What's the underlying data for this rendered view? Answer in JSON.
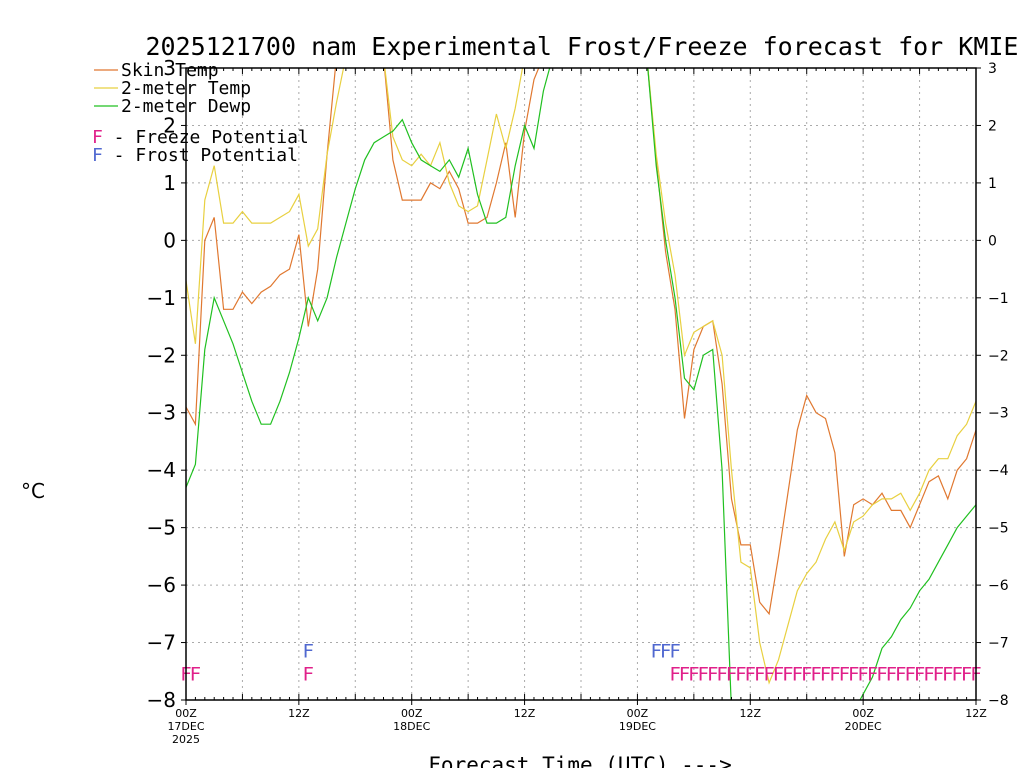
{
  "chart_data": {
    "type": "line",
    "title": "2025121700 nam Experimental Frost/Freeze forecast for KMIE",
    "xlabel": "Forecast Time (UTC) --->",
    "ylabel": "°C",
    "ylim": [
      -8,
      3
    ],
    "yticks": [
      3,
      2,
      1,
      0,
      -1,
      -2,
      -3,
      -4,
      -5,
      -6,
      -7,
      -8
    ],
    "xlim": [
      0,
      84
    ],
    "grid": true,
    "legend_position": "top-left",
    "x_ticks": [
      {
        "hour": 0,
        "label": "00Z",
        "sub": "17DEC",
        "sub2": "2025"
      },
      {
        "hour": 12,
        "label": "12Z",
        "sub": "",
        "sub2": ""
      },
      {
        "hour": 24,
        "label": "00Z",
        "sub": "18DEC",
        "sub2": ""
      },
      {
        "hour": 36,
        "label": "12Z",
        "sub": "",
        "sub2": ""
      },
      {
        "hour": 48,
        "label": "00Z",
        "sub": "19DEC",
        "sub2": ""
      },
      {
        "hour": 60,
        "label": "12Z",
        "sub": "",
        "sub2": ""
      },
      {
        "hour": 72,
        "label": "00Z",
        "sub": "20DEC",
        "sub2": ""
      },
      {
        "hour": 84,
        "label": "12Z",
        "sub": "",
        "sub2": ""
      }
    ],
    "series": [
      {
        "name": "Skin Temp",
        "color": "#e07830",
        "points": [
          [
            0,
            -2.9
          ],
          [
            1,
            -3.2
          ],
          [
            2,
            0.0
          ],
          [
            3,
            0.4
          ],
          [
            4,
            -1.2
          ],
          [
            5,
            -1.2
          ],
          [
            6,
            -0.9
          ],
          [
            7,
            -1.1
          ],
          [
            8,
            -0.9
          ],
          [
            9,
            -0.8
          ],
          [
            10,
            -0.6
          ],
          [
            11,
            -0.5
          ],
          [
            12,
            0.1
          ],
          [
            13,
            -1.5
          ],
          [
            14,
            -0.5
          ],
          [
            15,
            1.5
          ],
          [
            16,
            3.2
          ],
          [
            21,
            3.2
          ],
          [
            22,
            1.4
          ],
          [
            23,
            0.7
          ],
          [
            24,
            0.7
          ],
          [
            25,
            0.7
          ],
          [
            26,
            1.0
          ],
          [
            27,
            0.9
          ],
          [
            28,
            1.2
          ],
          [
            29,
            0.9
          ],
          [
            30,
            0.3
          ],
          [
            31,
            0.3
          ],
          [
            32,
            0.4
          ],
          [
            33,
            1.0
          ],
          [
            34,
            1.7
          ],
          [
            35,
            0.4
          ],
          [
            36,
            1.9
          ],
          [
            37,
            2.8
          ],
          [
            38,
            3.2
          ],
          [
            49,
            3.2
          ],
          [
            50,
            1.4
          ],
          [
            51,
            -0.2
          ],
          [
            52,
            -1.2
          ],
          [
            53,
            -3.1
          ],
          [
            54,
            -1.9
          ],
          [
            55,
            -1.5
          ],
          [
            56,
            -1.4
          ],
          [
            57,
            -2.5
          ],
          [
            58,
            -4.5
          ],
          [
            59,
            -5.3
          ],
          [
            60,
            -5.3
          ],
          [
            61,
            -6.3
          ],
          [
            62,
            -6.5
          ],
          [
            63,
            -5.5
          ],
          [
            64,
            -4.4
          ],
          [
            65,
            -3.3
          ],
          [
            66,
            -2.7
          ],
          [
            67,
            -3.0
          ],
          [
            68,
            -3.1
          ],
          [
            69,
            -3.7
          ],
          [
            70,
            -5.5
          ],
          [
            71,
            -4.6
          ],
          [
            72,
            -4.5
          ],
          [
            73,
            -4.6
          ],
          [
            74,
            -4.4
          ],
          [
            75,
            -4.7
          ],
          [
            76,
            -4.7
          ],
          [
            77,
            -5.0
          ],
          [
            78,
            -4.6
          ],
          [
            79,
            -4.2
          ],
          [
            80,
            -4.1
          ],
          [
            81,
            -4.5
          ],
          [
            82,
            -4.0
          ],
          [
            83,
            -3.8
          ],
          [
            84,
            -3.3
          ]
        ]
      },
      {
        "name": "2-meter Temp",
        "color": "#e8d040",
        "points": [
          [
            0,
            -0.7
          ],
          [
            1,
            -1.8
          ],
          [
            2,
            0.7
          ],
          [
            3,
            1.3
          ],
          [
            4,
            0.3
          ],
          [
            5,
            0.3
          ],
          [
            6,
            0.5
          ],
          [
            7,
            0.3
          ],
          [
            8,
            0.3
          ],
          [
            9,
            0.3
          ],
          [
            10,
            0.4
          ],
          [
            11,
            0.5
          ],
          [
            12,
            0.8
          ],
          [
            13,
            -0.1
          ],
          [
            14,
            0.2
          ],
          [
            15,
            1.5
          ],
          [
            16,
            2.4
          ],
          [
            17,
            3.2
          ],
          [
            21,
            3.2
          ],
          [
            22,
            1.8
          ],
          [
            23,
            1.4
          ],
          [
            24,
            1.3
          ],
          [
            25,
            1.5
          ],
          [
            26,
            1.3
          ],
          [
            27,
            1.7
          ],
          [
            28,
            1.0
          ],
          [
            29,
            0.6
          ],
          [
            30,
            0.5
          ],
          [
            31,
            0.6
          ],
          [
            32,
            1.4
          ],
          [
            33,
            2.2
          ],
          [
            34,
            1.6
          ],
          [
            35,
            2.3
          ],
          [
            36,
            3.2
          ],
          [
            49,
            3.2
          ],
          [
            50,
            1.5
          ],
          [
            51,
            0.3
          ],
          [
            52,
            -0.6
          ],
          [
            53,
            -2.0
          ],
          [
            54,
            -1.6
          ],
          [
            55,
            -1.5
          ],
          [
            56,
            -1.4
          ],
          [
            57,
            -2.0
          ],
          [
            58,
            -4.0
          ],
          [
            59,
            -5.6
          ],
          [
            60,
            -5.7
          ],
          [
            61,
            -7.0
          ],
          [
            62,
            -7.7
          ],
          [
            63,
            -7.3
          ],
          [
            64,
            -6.7
          ],
          [
            65,
            -6.1
          ],
          [
            66,
            -5.8
          ],
          [
            67,
            -5.6
          ],
          [
            68,
            -5.2
          ],
          [
            69,
            -4.9
          ],
          [
            70,
            -5.4
          ],
          [
            71,
            -4.9
          ],
          [
            72,
            -4.8
          ],
          [
            73,
            -4.6
          ],
          [
            74,
            -4.5
          ],
          [
            75,
            -4.5
          ],
          [
            76,
            -4.4
          ],
          [
            77,
            -4.7
          ],
          [
            78,
            -4.4
          ],
          [
            79,
            -4.0
          ],
          [
            80,
            -3.8
          ],
          [
            81,
            -3.8
          ],
          [
            82,
            -3.4
          ],
          [
            83,
            -3.2
          ],
          [
            84,
            -2.8
          ]
        ]
      },
      {
        "name": "2-meter Dewp",
        "color": "#20c020",
        "points": [
          [
            0,
            -4.3
          ],
          [
            1,
            -3.9
          ],
          [
            2,
            -1.9
          ],
          [
            3,
            -1.0
          ],
          [
            4,
            -1.4
          ],
          [
            5,
            -1.8
          ],
          [
            6,
            -2.3
          ],
          [
            7,
            -2.8
          ],
          [
            8,
            -3.2
          ],
          [
            9,
            -3.2
          ],
          [
            10,
            -2.8
          ],
          [
            11,
            -2.3
          ],
          [
            12,
            -1.7
          ],
          [
            13,
            -1.0
          ],
          [
            14,
            -1.4
          ],
          [
            15,
            -1.0
          ],
          [
            16,
            -0.3
          ],
          [
            17,
            0.3
          ],
          [
            18,
            0.9
          ],
          [
            19,
            1.4
          ],
          [
            20,
            1.7
          ],
          [
            21,
            1.8
          ],
          [
            22,
            1.9
          ],
          [
            23,
            2.1
          ],
          [
            24,
            1.7
          ],
          [
            25,
            1.4
          ],
          [
            26,
            1.3
          ],
          [
            27,
            1.2
          ],
          [
            28,
            1.4
          ],
          [
            29,
            1.1
          ],
          [
            30,
            1.6
          ],
          [
            31,
            0.8
          ],
          [
            32,
            0.3
          ],
          [
            33,
            0.3
          ],
          [
            34,
            0.4
          ],
          [
            35,
            1.3
          ],
          [
            36,
            2.0
          ],
          [
            37,
            1.6
          ],
          [
            38,
            2.6
          ],
          [
            39,
            3.2
          ],
          [
            49,
            3.2
          ],
          [
            50,
            1.3
          ],
          [
            51,
            0.0
          ],
          [
            52,
            -1.0
          ],
          [
            53,
            -2.4
          ],
          [
            54,
            -2.6
          ],
          [
            55,
            -2.0
          ],
          [
            56,
            -1.9
          ],
          [
            57,
            -4.0
          ],
          [
            58,
            -8.2
          ],
          [
            71,
            -8.2
          ],
          [
            72,
            -7.9
          ],
          [
            73,
            -7.6
          ],
          [
            74,
            -7.1
          ],
          [
            75,
            -6.9
          ],
          [
            76,
            -6.6
          ],
          [
            77,
            -6.4
          ],
          [
            78,
            -6.1
          ],
          [
            79,
            -5.9
          ],
          [
            80,
            -5.6
          ],
          [
            81,
            -5.3
          ],
          [
            82,
            -5.0
          ],
          [
            83,
            -4.8
          ],
          [
            84,
            -4.6
          ]
        ]
      }
    ],
    "legend_items": [
      {
        "label": "Skin Temp",
        "color": "#e07830"
      },
      {
        "label": "2-meter Temp",
        "color": "#e8d040"
      },
      {
        "label": "2-meter Dewp",
        "color": "#20c020"
      }
    ],
    "potential_legend": [
      {
        "prefix": "F",
        "text": " - Freeze Potential",
        "color": "#e0208a"
      },
      {
        "prefix": "F",
        "text": " - Frost Potential",
        "color": "#5068d0"
      }
    ],
    "freeze_marker": {
      "symbol": "F",
      "color": "#e0208a",
      "y": -7.5,
      "hours": [
        0,
        1,
        13,
        52,
        53,
        54,
        55,
        56,
        57,
        58,
        59,
        60,
        61,
        62,
        63,
        64,
        65,
        66,
        67,
        68,
        69,
        70,
        71,
        72,
        73,
        74,
        75,
        76,
        77,
        78,
        79,
        80,
        81,
        82,
        83,
        84
      ]
    },
    "frost_marker": {
      "symbol": "F",
      "color": "#5068d0",
      "y": -7.1,
      "hours": [
        13,
        50,
        51,
        52
      ]
    }
  }
}
